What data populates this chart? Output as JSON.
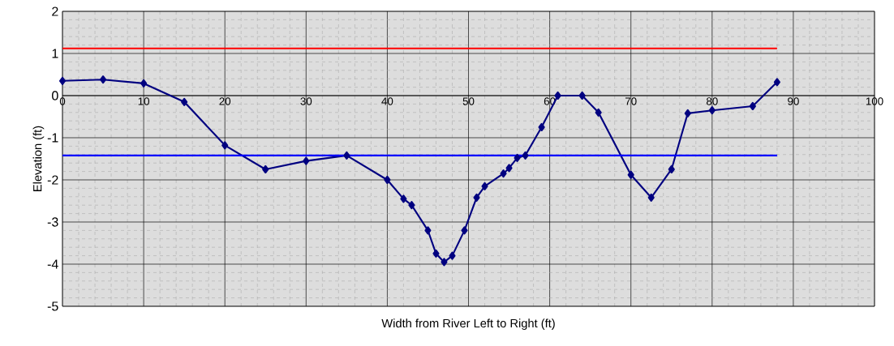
{
  "chart_data": {
    "type": "line",
    "xlabel": "Width from River Left to Right (ft)",
    "ylabel": "Elevation (ft)",
    "xlim": [
      0,
      100
    ],
    "xticks": [
      0,
      10,
      20,
      30,
      40,
      50,
      60,
      70,
      80,
      90,
      100
    ],
    "ylim": [
      -5,
      2
    ],
    "yticks": [
      -5,
      -4,
      -3,
      -2,
      -1,
      0,
      1,
      2
    ],
    "grid": true,
    "series": [
      {
        "color": "#000080",
        "marker": "diamond",
        "x": [
          0,
          5,
          10,
          15,
          20,
          25,
          30,
          35,
          40,
          42,
          43,
          45,
          46,
          47,
          48,
          49.5,
          51,
          52,
          54.3,
          55,
          56,
          57,
          59,
          61,
          64,
          66,
          70,
          72.5,
          75,
          77,
          80,
          85,
          88
        ],
        "values": [
          0.35,
          0.38,
          0.29,
          -0.15,
          -1.18,
          -1.75,
          -1.55,
          -1.42,
          -2.0,
          -2.45,
          -2.6,
          -3.2,
          -3.75,
          -3.95,
          -3.8,
          -3.2,
          -2.42,
          -2.15,
          -1.85,
          -1.72,
          -1.48,
          -1.42,
          -0.75,
          0.0,
          0.0,
          -0.4,
          -1.88,
          -2.42,
          -1.75,
          -0.42,
          -0.35,
          -0.25,
          0.32
        ]
      },
      {
        "color": "#ff0000",
        "marker": "none",
        "x": [
          0,
          88
        ],
        "values": [
          1.12,
          1.12
        ]
      },
      {
        "color": "#0000ff",
        "marker": "none",
        "x": [
          0,
          88
        ],
        "values": [
          -1.42,
          -1.42
        ]
      }
    ]
  }
}
